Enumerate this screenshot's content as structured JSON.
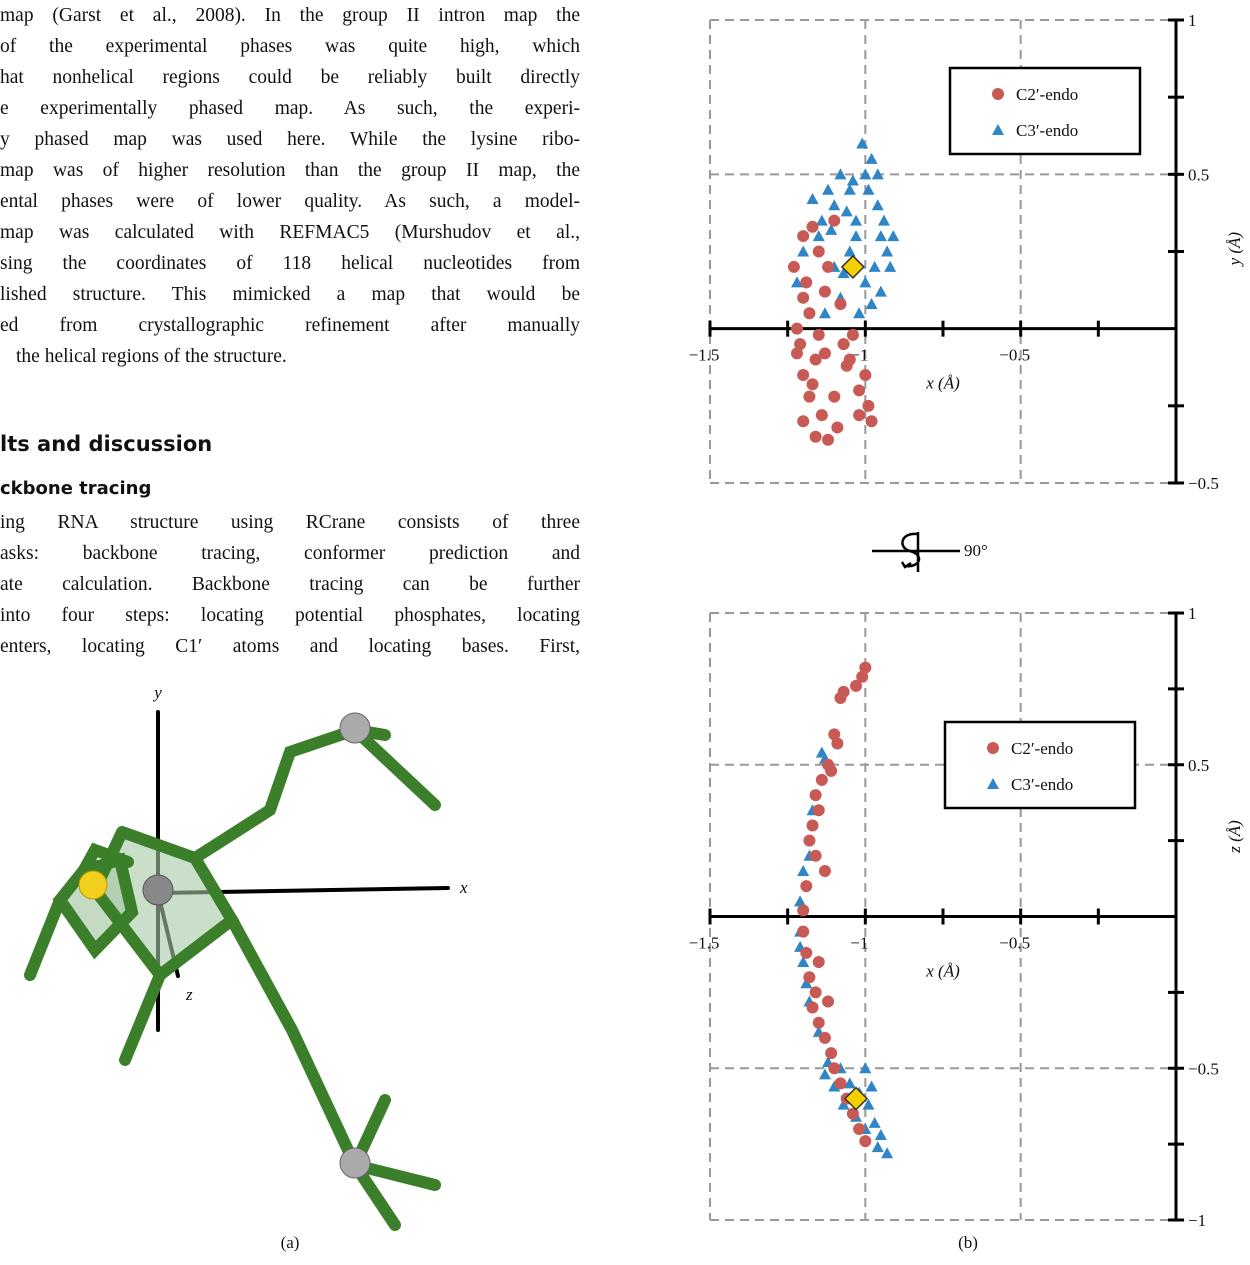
{
  "text": {
    "paragraph_1": [
      "map (Garst et al., 2008). In the group II intron map the",
      "of the experimental phases was quite high, which",
      "hat nonhelical regions could be reliably built directly",
      "e experimentally phased map. As such, the experi-",
      "y phased map was used here. While the lysine ribo-",
      "map was of higher resolution than the group II map, the",
      "ental phases were of lower quality. As such, a model-",
      "map was calculated with REFMAC5 (Murshudov et al.,",
      "sing the coordinates of 118 helical nucleotides from",
      "lished structure. This mimicked a map that would be",
      "ed from crystallographic refinement after manually",
      "the helical regions of the structure."
    ],
    "heading": "lts and discussion",
    "subheading": "ckbone tracing",
    "paragraph_2": [
      "ing RNA structure using RCrane consists of three",
      "asks: backbone tracing, conformer prediction and",
      "ate calculation. Backbone tracing can be further",
      "into four steps: locating potential phosphates, locating",
      "enters, locating C1′ atoms and locating bases. First,"
    ]
  },
  "figure_a": {
    "axis_labels": [
      "y",
      "x",
      "z"
    ],
    "caption": "(a)"
  },
  "figure_b": {
    "caption": "(b)",
    "rotation_label": "90°"
  },
  "chart_data": [
    {
      "type": "scatter",
      "xlabel": "x (Å)",
      "ylabel": "y (Å)",
      "xlim": [
        -1.5,
        0
      ],
      "ylim": [
        -0.5,
        1
      ],
      "xticks": [
        {
          "value": -1.5,
          "label": "−1.5"
        },
        {
          "value": -1,
          "label": "−1"
        },
        {
          "value": -0.5,
          "label": "−0.5"
        }
      ],
      "yticks": [
        1,
        0.5,
        {
          "value": -0.5,
          "label": "−0.5"
        }
      ],
      "x_tick_marks": [
        -1.5,
        -1.25,
        -1,
        -0.75,
        -0.5,
        -0.25
      ],
      "y_tick_marks": [
        1,
        0.75,
        0.5,
        0.25,
        -0.25,
        -0.5
      ],
      "grid": true,
      "legend": "upper right",
      "series": [
        {
          "name": "C3′-endo",
          "color": "#2f86c6",
          "marker": "triangle",
          "x": [
            -1.15,
            -1.1,
            -1.05,
            -1.0,
            -0.98,
            -1.08,
            -1.12,
            -1.03,
            -0.96,
            -0.95,
            -0.93,
            -0.97,
            -1.0,
            -1.05,
            -1.1,
            -1.14,
            -1.2,
            -1.22,
            -1.08,
            -1.02,
            -0.95,
            -0.92,
            -0.99,
            -1.06,
            -1.04,
            -1.11,
            -0.96,
            -1.01,
            -1.17,
            -0.94,
            -1.03,
            -1.07,
            -1.13,
            -0.91,
            -0.98
          ],
          "y": [
            0.3,
            0.4,
            0.45,
            0.5,
            0.55,
            0.5,
            0.45,
            0.35,
            0.4,
            0.3,
            0.25,
            0.2,
            0.15,
            0.25,
            0.2,
            0.35,
            0.25,
            0.15,
            0.1,
            0.05,
            0.12,
            0.2,
            0.45,
            0.38,
            0.48,
            0.32,
            0.5,
            0.6,
            0.42,
            0.35,
            0.3,
            0.18,
            0.05,
            0.3,
            0.08
          ]
        },
        {
          "name": "C2′-endo",
          "color": "#c85a55",
          "marker": "circle",
          "x": [
            -1.2,
            -1.18,
            -1.22,
            -1.15,
            -1.19,
            -1.12,
            -1.2,
            -1.17,
            -1.1,
            -1.21,
            -1.16,
            -1.13,
            -1.07,
            -1.05,
            -1.2,
            -1.18,
            -1.14,
            -1.2,
            -1.16,
            -1.12,
            -1.09,
            -1.02,
            -0.99,
            -0.98,
            -1.0,
            -1.04,
            -1.08,
            -1.13,
            -1.23,
            -1.15,
            -1.1,
            -1.06,
            -1.02,
            -1.17,
            -1.22
          ],
          "y": [
            0.1,
            0.05,
            0.0,
            -0.02,
            0.15,
            0.2,
            0.3,
            0.33,
            0.35,
            -0.05,
            -0.1,
            -0.08,
            -0.05,
            -0.1,
            -0.15,
            -0.22,
            -0.28,
            -0.3,
            -0.35,
            -0.36,
            -0.32,
            -0.2,
            -0.25,
            -0.3,
            -0.15,
            -0.02,
            0.08,
            0.12,
            0.2,
            0.25,
            -0.22,
            -0.12,
            -0.28,
            -0.18,
            -0.08
          ]
        }
      ],
      "highlight": {
        "x": -1.04,
        "y": 0.2,
        "color": "#f5d000"
      }
    },
    {
      "type": "scatter",
      "xlabel": "x (Å)",
      "ylabel": "z (Å)",
      "xlim": [
        -1.5,
        0
      ],
      "ylim": [
        -1,
        1
      ],
      "xticks": [
        {
          "value": -1.5,
          "label": "−1.5"
        },
        {
          "value": -1,
          "label": "−1"
        },
        {
          "value": -0.5,
          "label": "−0.5"
        }
      ],
      "yticks": [
        1,
        0.5,
        {
          "value": -0.5,
          "label": "−0.5"
        },
        {
          "value": -1,
          "label": "−1"
        }
      ],
      "x_tick_marks": [
        -1.5,
        -1.25,
        -1,
        -0.75,
        -0.5,
        -0.25
      ],
      "y_tick_marks": [
        1,
        0.75,
        0.5,
        0.25,
        -0.25,
        -0.5,
        -0.75,
        -1
      ],
      "grid": true,
      "legend": "upper right",
      "series": [
        {
          "name": "C3′-endo",
          "color": "#2f86c6",
          "marker": "triangle",
          "x": [
            -1.14,
            -1.13,
            -1.17,
            -1.2,
            -1.21,
            -1.21,
            -1.2,
            -1.18,
            -1.15,
            -1.12,
            -1.08,
            -1.05,
            -1.02,
            -0.99,
            -0.97,
            -0.95,
            -0.93,
            -0.96,
            -1.0,
            -1.03,
            -1.07,
            -1.1,
            -1.13,
            -1.0,
            -0.98,
            -1.19,
            -1.21,
            -1.18
          ],
          "y": [
            0.54,
            0.52,
            0.35,
            0.15,
            0.05,
            -0.05,
            -0.15,
            -0.28,
            -0.38,
            -0.48,
            -0.5,
            -0.55,
            -0.58,
            -0.62,
            -0.68,
            -0.72,
            -0.78,
            -0.76,
            -0.7,
            -0.66,
            -0.62,
            -0.56,
            -0.52,
            -0.5,
            -0.56,
            -0.22,
            -0.1,
            0.2
          ]
        },
        {
          "name": "C2′-endo",
          "color": "#c85a55",
          "marker": "circle",
          "x": [
            -1.0,
            -1.01,
            -1.03,
            -1.08,
            -1.07,
            -1.1,
            -1.09,
            -1.12,
            -1.11,
            -1.14,
            -1.16,
            -1.15,
            -1.17,
            -1.18,
            -1.16,
            -1.19,
            -1.2,
            -1.2,
            -1.19,
            -1.18,
            -1.16,
            -1.17,
            -1.15,
            -1.13,
            -1.11,
            -1.1,
            -1.08,
            -1.06,
            -1.04,
            -1.02,
            -1.0,
            -1.13,
            -1.15,
            -1.12
          ],
          "y": [
            0.82,
            0.79,
            0.76,
            0.72,
            0.74,
            0.6,
            0.57,
            0.5,
            0.48,
            0.45,
            0.4,
            0.35,
            0.3,
            0.25,
            0.2,
            0.1,
            0.02,
            -0.05,
            -0.12,
            -0.2,
            -0.25,
            -0.3,
            -0.35,
            -0.4,
            -0.45,
            -0.5,
            -0.55,
            -0.6,
            -0.65,
            -0.7,
            -0.74,
            0.15,
            -0.15,
            -0.28
          ]
        }
      ],
      "highlight": {
        "x": -1.03,
        "y": -0.6,
        "color": "#f5d000"
      }
    }
  ]
}
